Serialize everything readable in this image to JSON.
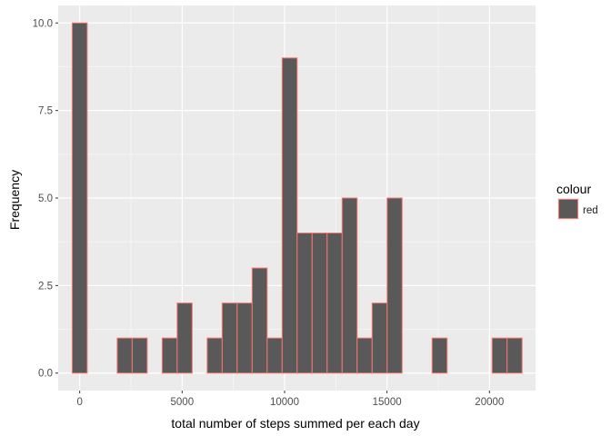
{
  "chart_data": {
    "type": "bar",
    "xlabel": "total number of steps summed per each day",
    "ylabel": "Frequency",
    "xlim": [
      -1050,
      22250
    ],
    "ylim": [
      -0.5,
      10.5
    ],
    "x_ticks": [
      0,
      5000,
      10000,
      15000,
      20000
    ],
    "x_tick_labels": [
      "0",
      "5000",
      "10000",
      "15000",
      "20000"
    ],
    "x_minor_ticks": [
      2500,
      7500,
      12500,
      17500
    ],
    "y_ticks": [
      0,
      2.5,
      5,
      7.5,
      10
    ],
    "y_tick_labels": [
      "0.0",
      "2.5",
      "5.0",
      "7.5",
      "10.0"
    ],
    "y_minor_ticks": [
      1.25,
      3.75,
      6.25,
      8.75
    ],
    "grid": true,
    "legend_position": "right",
    "legend_title": "colour",
    "series": [
      {
        "name": "red",
        "fill": "#595959",
        "stroke": "#F8766D",
        "bins": [
          {
            "x0": -366,
            "x1": 366,
            "count": 10
          },
          {
            "x0": 366,
            "x1": 1098,
            "count": 0
          },
          {
            "x0": 1098,
            "x1": 1830,
            "count": 0
          },
          {
            "x0": 1830,
            "x1": 2562,
            "count": 1
          },
          {
            "x0": 2562,
            "x1": 3294,
            "count": 1
          },
          {
            "x0": 3294,
            "x1": 4026,
            "count": 0
          },
          {
            "x0": 4026,
            "x1": 4758,
            "count": 1
          },
          {
            "x0": 4758,
            "x1": 5490,
            "count": 2
          },
          {
            "x0": 5490,
            "x1": 6222,
            "count": 0
          },
          {
            "x0": 6222,
            "x1": 6954,
            "count": 1
          },
          {
            "x0": 6954,
            "x1": 7686,
            "count": 2
          },
          {
            "x0": 7686,
            "x1": 8418,
            "count": 2
          },
          {
            "x0": 8418,
            "x1": 9150,
            "count": 3
          },
          {
            "x0": 9150,
            "x1": 9882,
            "count": 1
          },
          {
            "x0": 9882,
            "x1": 10614,
            "count": 9
          },
          {
            "x0": 10614,
            "x1": 11346,
            "count": 4
          },
          {
            "x0": 11346,
            "x1": 12078,
            "count": 4
          },
          {
            "x0": 12078,
            "x1": 12810,
            "count": 4
          },
          {
            "x0": 12810,
            "x1": 13542,
            "count": 5
          },
          {
            "x0": 13542,
            "x1": 14274,
            "count": 1
          },
          {
            "x0": 14274,
            "x1": 15006,
            "count": 2
          },
          {
            "x0": 15006,
            "x1": 15738,
            "count": 5
          },
          {
            "x0": 15738,
            "x1": 16470,
            "count": 0
          },
          {
            "x0": 16470,
            "x1": 17202,
            "count": 0
          },
          {
            "x0": 17202,
            "x1": 17934,
            "count": 1
          },
          {
            "x0": 17934,
            "x1": 18666,
            "count": 0
          },
          {
            "x0": 18666,
            "x1": 19398,
            "count": 0
          },
          {
            "x0": 19398,
            "x1": 20130,
            "count": 0
          },
          {
            "x0": 20130,
            "x1": 20862,
            "count": 1
          },
          {
            "x0": 20862,
            "x1": 21594,
            "count": 1
          }
        ]
      }
    ]
  }
}
